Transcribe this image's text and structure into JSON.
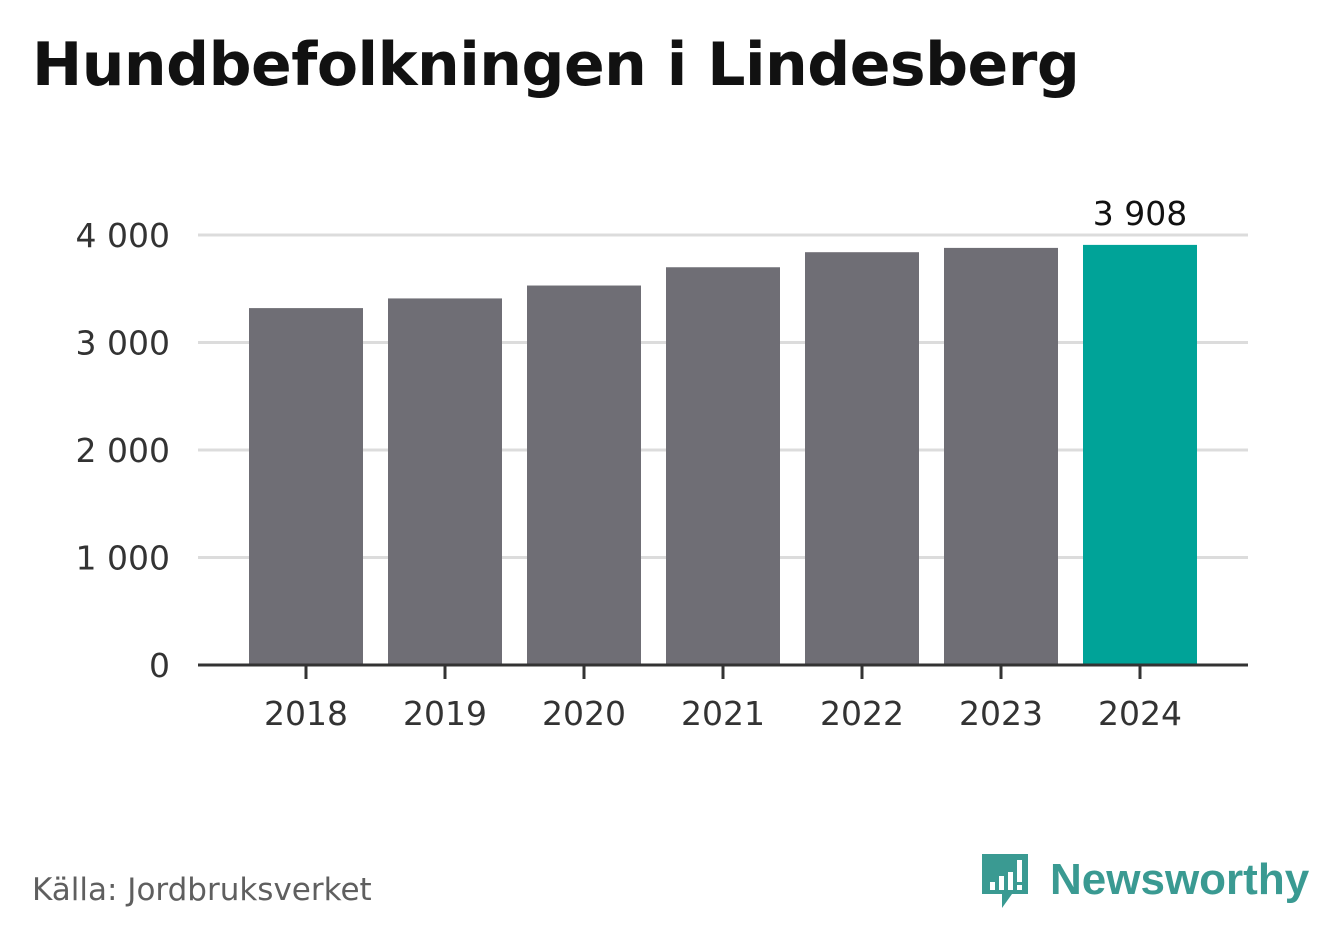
{
  "chart_data": {
    "type": "bar",
    "title": "Hundbefolkningen i Lindesberg",
    "categories": [
      "2018",
      "2019",
      "2020",
      "2021",
      "2022",
      "2023",
      "2024"
    ],
    "values": [
      3320,
      3410,
      3530,
      3700,
      3840,
      3880,
      3908
    ],
    "ylim": [
      0,
      4000
    ],
    "yticks": [
      0,
      1000,
      2000,
      3000,
      4000
    ],
    "ytick_labels": [
      "0",
      "1 000",
      "2 000",
      "3 000",
      "4 000"
    ],
    "grid": true,
    "highlight_index": 6,
    "highlight_label": "3 908",
    "colors": {
      "bar": "#6f6e75",
      "highlight": "#00a398",
      "grid": "#dcdcdc",
      "axis": "#333333",
      "text": "#333333"
    }
  },
  "footer": {
    "source": "Källa: Jordbruksverket",
    "brand": "Newsworthy",
    "brand_icon": "newsworthy-logo-icon",
    "brand_color": "#3a9a92"
  }
}
